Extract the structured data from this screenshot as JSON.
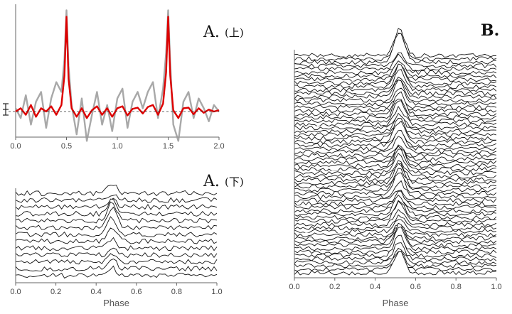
{
  "panels": {
    "a_top": {
      "label": "A.",
      "sub": "(上)"
    },
    "a_bottom": {
      "label": "A.",
      "sub": "(下)"
    },
    "b": {
      "label": "B."
    }
  },
  "chart_data": [
    {
      "type": "line",
      "panel": "A-top",
      "title": "",
      "xlabel": "",
      "ylabel": "",
      "xlim": [
        0.0,
        2.0
      ],
      "xticks": [
        "0.0",
        "0.5",
        "1.0",
        "1.5",
        "2.0"
      ],
      "grid": false,
      "series": [
        {
          "color": "#999999",
          "x": [
            0.0,
            0.05,
            0.1,
            0.15,
            0.2,
            0.25,
            0.3,
            0.35,
            0.4,
            0.45,
            0.48,
            0.5,
            0.52,
            0.55,
            0.6,
            0.65,
            0.7,
            0.75,
            0.8,
            0.85,
            0.9,
            0.95,
            1.0,
            1.05,
            1.1,
            1.15,
            1.2,
            1.25,
            1.3,
            1.35,
            1.4,
            1.45,
            1.48,
            1.5,
            1.52,
            1.55,
            1.6,
            1.65,
            1.7,
            1.75,
            1.8,
            1.85,
            1.9,
            1.95,
            2.0
          ],
          "y": [
            0.05,
            -0.1,
            0.25,
            -0.2,
            0.15,
            0.3,
            -0.25,
            0.2,
            0.45,
            0.3,
            0.8,
            1.55,
            0.7,
            0.1,
            -0.35,
            0.2,
            -0.45,
            -0.05,
            0.3,
            -0.2,
            0.1,
            -0.3,
            0.2,
            0.35,
            -0.25,
            0.15,
            0.3,
            0.05,
            0.3,
            0.45,
            -0.1,
            0.35,
            0.9,
            1.55,
            0.75,
            -0.2,
            -0.45,
            0.15,
            0.3,
            -0.1,
            0.2,
            0.05,
            -0.15,
            0.1,
            0.0
          ]
        },
        {
          "color": "#dd0000",
          "x": [
            0.0,
            0.05,
            0.1,
            0.15,
            0.2,
            0.25,
            0.3,
            0.35,
            0.4,
            0.45,
            0.48,
            0.5,
            0.52,
            0.55,
            0.6,
            0.65,
            0.7,
            0.75,
            0.8,
            0.85,
            0.9,
            0.95,
            1.0,
            1.05,
            1.1,
            1.15,
            1.2,
            1.25,
            1.3,
            1.35,
            1.4,
            1.45,
            1.48,
            1.5,
            1.52,
            1.55,
            1.6,
            1.65,
            1.7,
            1.75,
            1.8,
            1.85,
            1.9,
            1.95,
            2.0
          ],
          "y": [
            0.0,
            0.05,
            -0.05,
            0.1,
            -0.08,
            0.05,
            0.0,
            0.08,
            -0.05,
            0.1,
            0.55,
            1.45,
            0.5,
            0.05,
            -0.08,
            0.05,
            -0.1,
            0.02,
            0.08,
            -0.05,
            0.05,
            -0.08,
            0.05,
            0.08,
            -0.06,
            0.04,
            0.06,
            -0.03,
            0.07,
            0.1,
            -0.05,
            0.12,
            0.6,
            1.45,
            0.55,
            0.02,
            -0.1,
            0.05,
            0.06,
            -0.04,
            0.05,
            -0.02,
            0.03,
            0.0,
            0.02
          ]
        }
      ]
    },
    {
      "type": "line",
      "panel": "A-bottom",
      "title": "",
      "xlabel": "Phase",
      "ylabel": "",
      "xlim": [
        0.0,
        1.0
      ],
      "xticks": [
        "0.0",
        "0.2",
        "0.4",
        "0.6",
        "0.8",
        "1.0"
      ],
      "grid": false,
      "n_traces": 13,
      "pulse_phase": 0.48,
      "pulse_amplitudes": [
        0.6,
        0.4,
        0.5,
        1.0,
        1.2,
        1.3,
        1.1,
        0.9,
        0.6,
        0.4,
        0.5,
        0.7,
        0.5
      ]
    },
    {
      "type": "line",
      "panel": "B",
      "title": "",
      "xlabel": "Phase",
      "ylabel": "",
      "xlim": [
        0.0,
        1.0
      ],
      "xticks": [
        "0.0",
        "0.2",
        "0.4",
        "0.6",
        "0.8",
        "1.0"
      ],
      "grid": false,
      "n_traces": 64,
      "pulse_phase": 0.52
    }
  ]
}
